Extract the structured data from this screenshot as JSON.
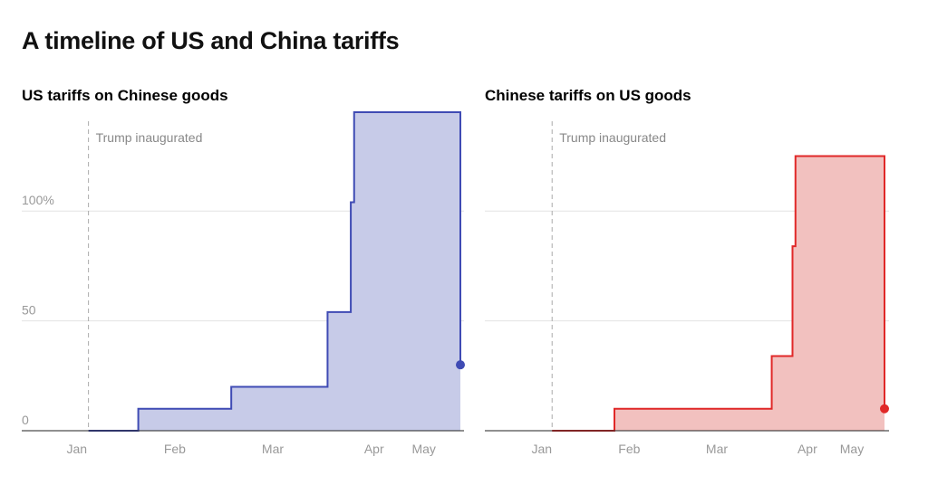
{
  "page": {
    "title": "A timeline of US and China tariffs"
  },
  "colors": {
    "us": "#3f4bb4",
    "us_fill": "#c7cbe8",
    "china": "#e02828",
    "china_fill": "#f2c1bf",
    "grid": "#e3e3e3",
    "axis": "#222222",
    "tick_text": "#999999",
    "annotation_line": "#aaaaaa"
  },
  "chart_data": [
    {
      "type": "area",
      "step": true,
      "title": "US tariffs on Chinese goods",
      "color_key": "us",
      "x_ticks": [
        "Jan",
        "Feb",
        "Mar",
        "Apr",
        "May"
      ],
      "y_ticks": [
        0,
        50,
        100
      ],
      "y_tick_labels": [
        "0",
        "50",
        "100%"
      ],
      "ylim": [
        0,
        145
      ],
      "grid": true,
      "series": [
        {
          "points": [
            {
              "date": "2025-01-20",
              "value": 0
            },
            {
              "date": "2025-02-04",
              "value": 10
            },
            {
              "date": "2025-03-04",
              "value": 20
            },
            {
              "date": "2025-04-02",
              "value": 54
            },
            {
              "date": "2025-04-09",
              "value": 104
            },
            {
              "date": "2025-04-10",
              "value": 145
            },
            {
              "date": "2025-05-12",
              "value": 145
            },
            {
              "date": "2025-05-12",
              "value": 30
            }
          ],
          "end_marker": true
        }
      ],
      "annotations": [
        {
          "date": "2025-01-20",
          "label": "Trump inaugurated"
        }
      ]
    },
    {
      "type": "area",
      "step": true,
      "title": "Chinese tariffs on US goods",
      "color_key": "china",
      "x_ticks": [
        "Jan",
        "Feb",
        "Mar",
        "Apr",
        "May"
      ],
      "y_ticks": [
        0,
        50,
        100
      ],
      "y_tick_labels": [
        "",
        "",
        ""
      ],
      "ylim": [
        0,
        145
      ],
      "grid": true,
      "series": [
        {
          "points": [
            {
              "date": "2025-01-20",
              "value": 0
            },
            {
              "date": "2025-02-10",
              "value": 10
            },
            {
              "date": "2025-04-04",
              "value": 34
            },
            {
              "date": "2025-04-11",
              "value": 84
            },
            {
              "date": "2025-04-12",
              "value": 125
            },
            {
              "date": "2025-05-12",
              "value": 125
            },
            {
              "date": "2025-05-12",
              "value": 10
            }
          ],
          "end_marker": true
        }
      ],
      "annotations": [
        {
          "date": "2025-01-20",
          "label": "Trump inaugurated"
        }
      ]
    }
  ]
}
